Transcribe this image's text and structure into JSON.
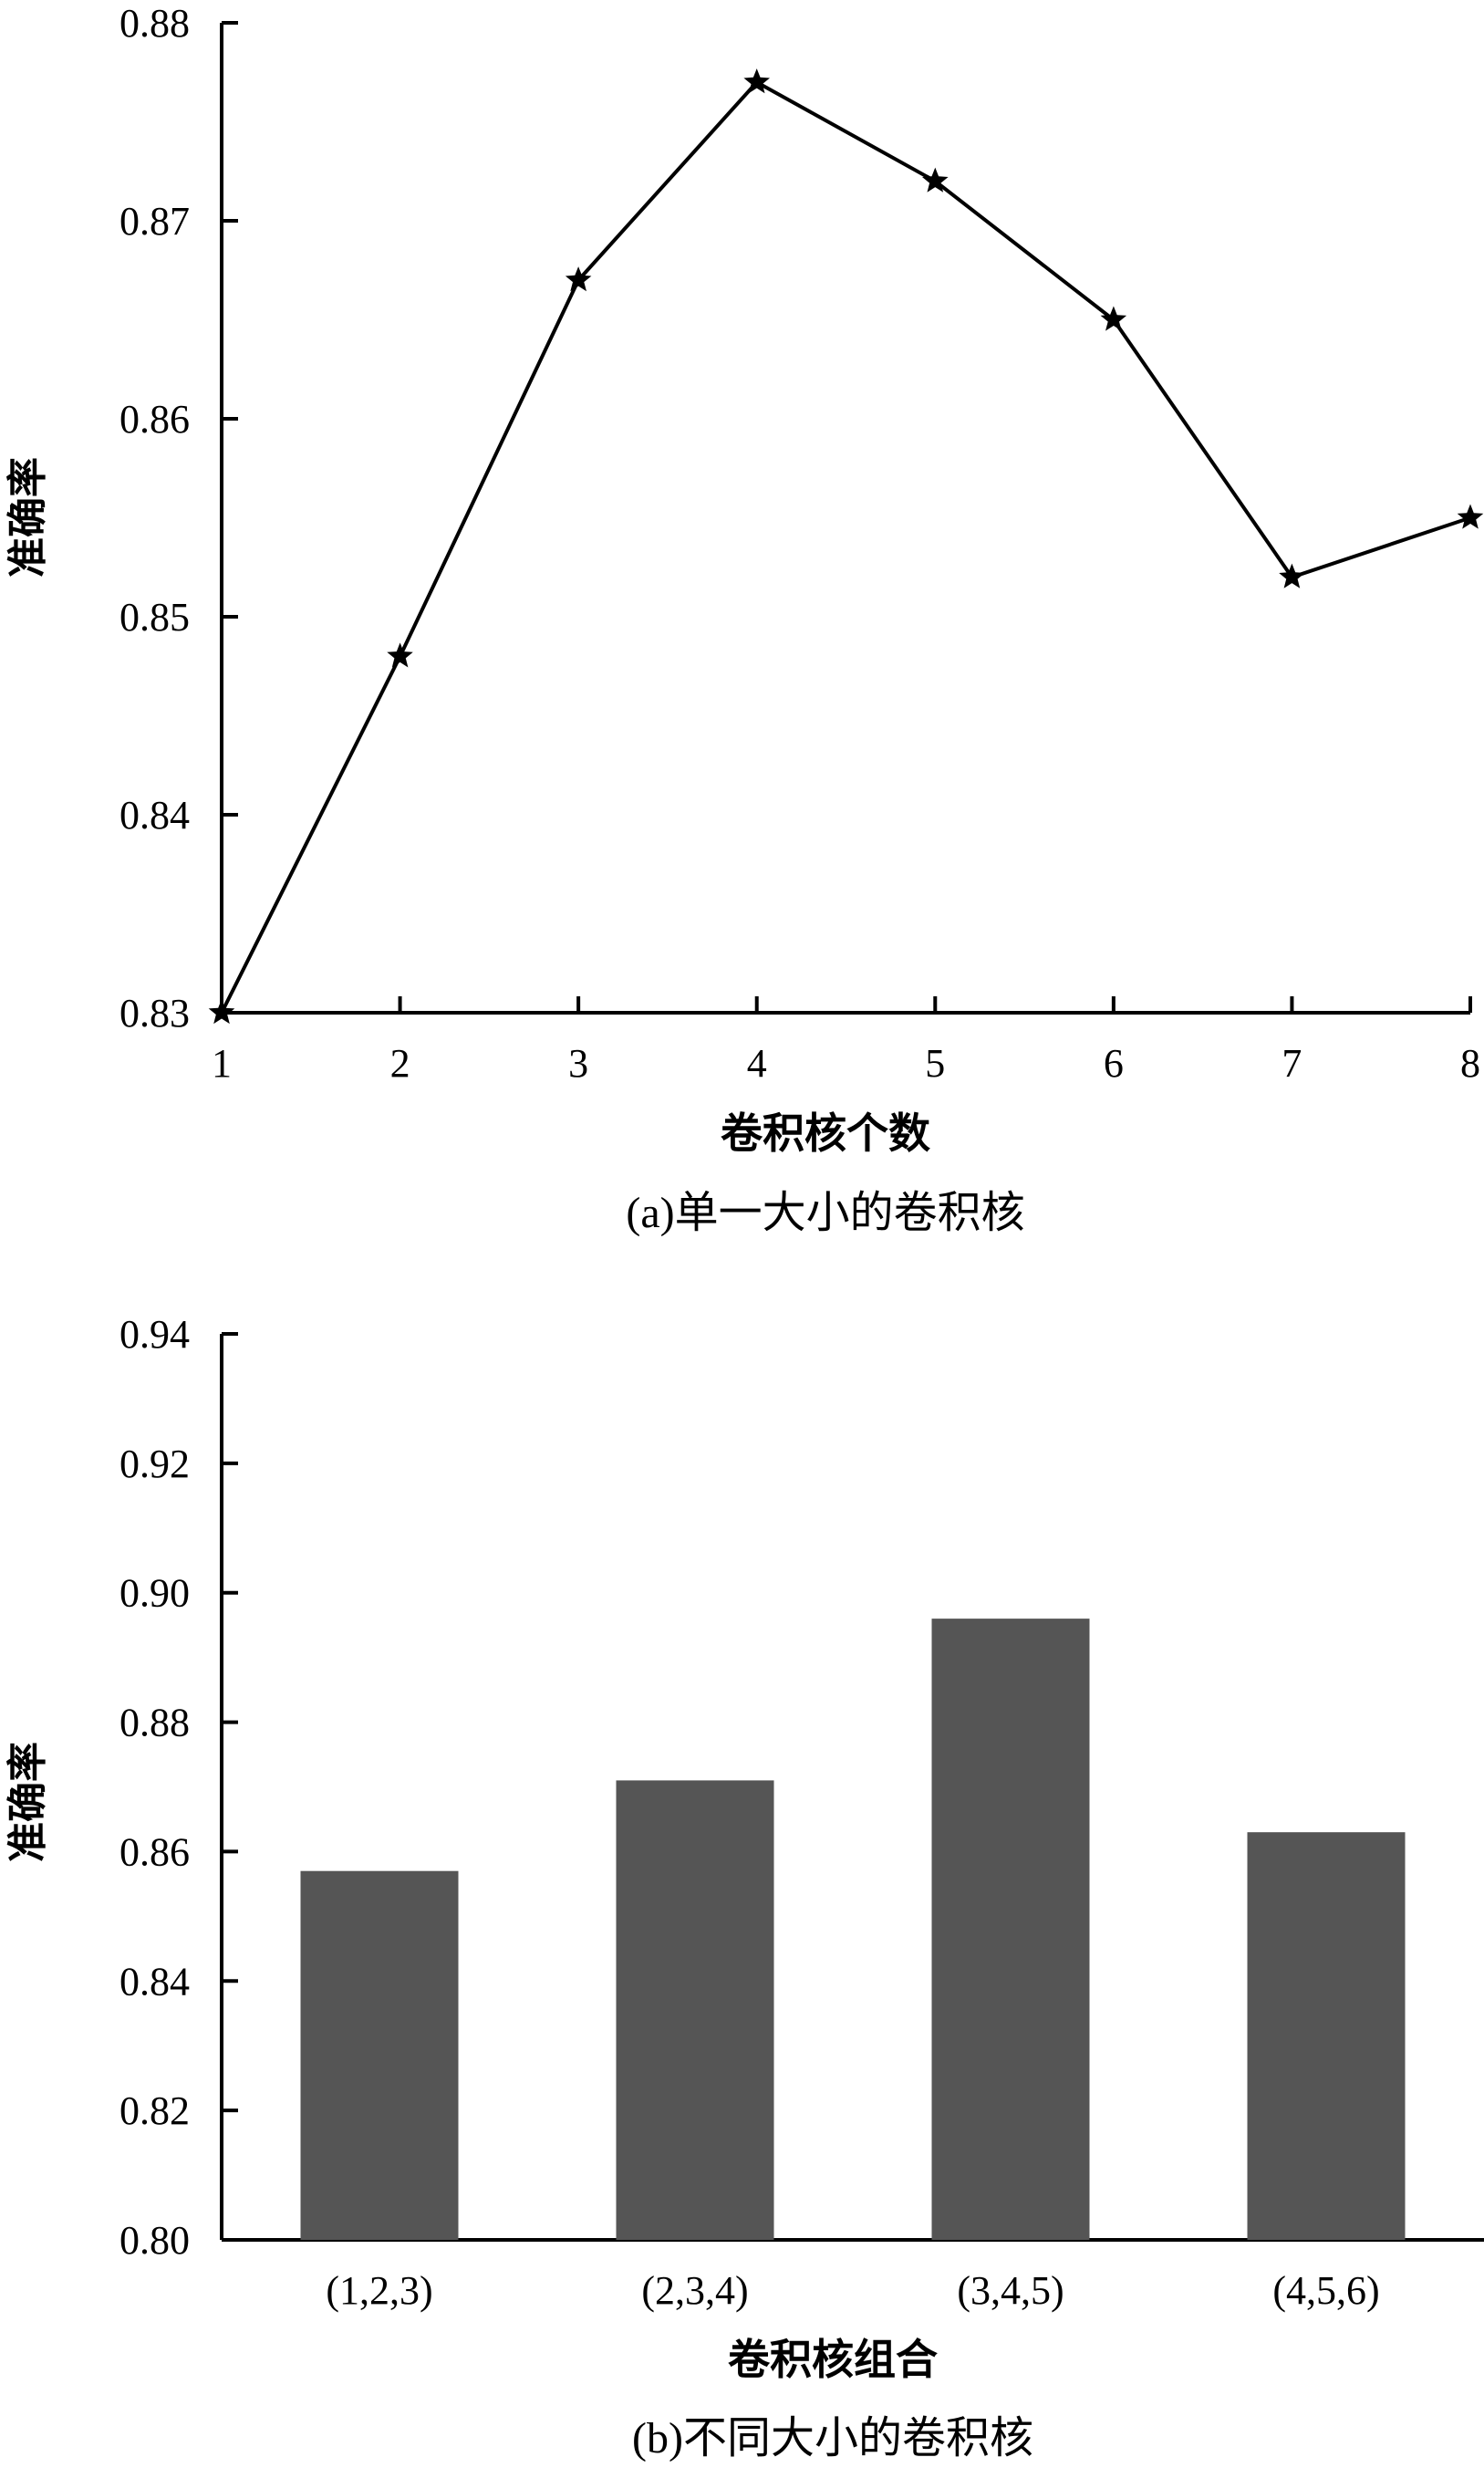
{
  "chart_data": [
    {
      "type": "line",
      "x": [
        1,
        2,
        3,
        4,
        5,
        6,
        7,
        8
      ],
      "series": [
        {
          "values": [
            0.83,
            0.848,
            0.867,
            0.877,
            0.872,
            0.865,
            0.852,
            0.855
          ]
        }
      ],
      "ylim": [
        0.83,
        0.88
      ],
      "xlim": [
        1,
        8
      ],
      "yticks": [
        "0.83",
        "0.84",
        "0.85",
        "0.86",
        "0.87",
        "0.88"
      ],
      "xticks": [
        "1",
        "2",
        "3",
        "4",
        "5",
        "6",
        "7",
        "8"
      ],
      "xlabel": "卷积核个数",
      "ylabel": "准确率",
      "caption": "(a)单一大小的卷积核",
      "marker": "star",
      "grid": false
    },
    {
      "type": "bar",
      "categories": [
        "(1,2,3)",
        "(2,3,4)",
        "(3,4,5)",
        "(4,5,6)"
      ],
      "values": [
        0.857,
        0.871,
        0.896,
        0.863
      ],
      "ylim": [
        0.8,
        0.94
      ],
      "yticks": [
        "0.80",
        "0.82",
        "0.84",
        "0.86",
        "0.88",
        "0.90",
        "0.92",
        "0.94"
      ],
      "xlabel": "卷积核组合",
      "ylabel": "准确率",
      "caption": "(b)不同大小的卷积核",
      "bar_color": "#555555",
      "grid": false
    }
  ]
}
